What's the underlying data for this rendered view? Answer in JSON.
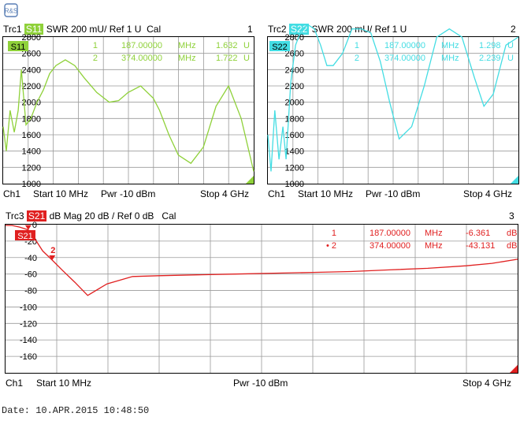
{
  "colors": {
    "trc1": "#8fd13a",
    "trc2": "#43dde3",
    "trc3": "#e02020"
  },
  "logo": {
    "icon": "rohde-schwarz-logo"
  },
  "panels": [
    {
      "id": "trc1",
      "header": {
        "trace": "Trc1",
        "param": "S11",
        "format": "SWR",
        "scale": "200 mU/",
        "ref": "Ref 1 U",
        "cal": "Cal",
        "num": "1"
      },
      "label": "S11",
      "footer": {
        "ch": "Ch1",
        "start": "Start  10 MHz",
        "pwr": "Pwr  -10 dBm",
        "stop": "Stop  4 GHz"
      },
      "markers": [
        {
          "num": "1",
          "freq": "187.00000",
          "unit": "MHz",
          "val": "1.632",
          "vunit": "U"
        },
        {
          "num": "2",
          "freq": "374.00000",
          "unit": "MHz",
          "val": "1.722",
          "vunit": "U"
        }
      ]
    },
    {
      "id": "trc2",
      "header": {
        "trace": "Trc2",
        "param": "S22",
        "format": "SWR",
        "scale": "200 mU/",
        "ref": "Ref 1 U",
        "cal": "",
        "num": "2"
      },
      "label": "S22",
      "footer": {
        "ch": "Ch1",
        "start": "Start  10 MHz",
        "pwr": "Pwr  -10 dBm",
        "stop": "Stop  4 GHz"
      },
      "markers": [
        {
          "num": "1",
          "freq": "187.00000",
          "unit": "MHz",
          "val": "1.298",
          "vunit": "U"
        },
        {
          "num": "2",
          "freq": "374.00000",
          "unit": "MHz",
          "val": "2.239",
          "vunit": "U"
        }
      ]
    },
    {
      "id": "trc3",
      "header": {
        "trace": "Trc3",
        "param": "S21",
        "format": "dB Mag",
        "scale": "20 dB /",
        "ref": "Ref 0 dB",
        "cal": "Cal",
        "num": "3"
      },
      "label": "S21",
      "footer": {
        "ch": "Ch1",
        "start": "Start  10 MHz",
        "pwr": "Pwr  -10 dBm",
        "stop": "Stop  4 GHz"
      },
      "markers": [
        {
          "num": "1",
          "freq": "187.00000",
          "unit": "MHz",
          "val": "-6.361",
          "vunit": "dB"
        },
        {
          "num": "• 2",
          "freq": "374.00000",
          "unit": "MHz",
          "val": "-43.131",
          "vunit": "dB"
        }
      ]
    }
  ],
  "date": "Date: 10.APR.2015  10:48:50",
  "chart_data": [
    {
      "type": "line",
      "series": [
        {
          "name": "S11",
          "x": [
            10,
            60,
            120,
            187,
            250,
            300,
            374,
            450,
            550,
            650,
            750,
            850,
            1000,
            1150,
            1300,
            1500,
            1700,
            1850,
            2000,
            2200,
            2400,
            2500,
            2650,
            2800,
            3000,
            3200,
            3400,
            3600,
            3800,
            4000
          ],
          "y": [
            1700,
            1400,
            1900,
            1632,
            1900,
            2400,
            1722,
            1800,
            2000,
            2150,
            2350,
            2450,
            2520,
            2450,
            2300,
            2120,
            2000,
            2020,
            2120,
            2200,
            2050,
            1900,
            1600,
            1350,
            1250,
            1450,
            1950,
            2200,
            1800,
            1150
          ]
        }
      ],
      "xlim": [
        10,
        4000
      ],
      "ylim": [
        1000,
        2800
      ],
      "yticks": [
        "1000",
        "1200",
        "1400",
        "1600",
        "1800",
        "2000",
        "2200",
        "2400",
        "2600",
        "2800"
      ]
    },
    {
      "type": "line",
      "series": [
        {
          "name": "S22",
          "x": [
            10,
            60,
            120,
            187,
            250,
            300,
            374,
            450,
            550,
            650,
            750,
            850,
            950,
            1050,
            1200,
            1350,
            1500,
            1650,
            1800,
            1950,
            2100,
            2300,
            2500,
            2700,
            2900,
            3100,
            3300,
            3450,
            3600,
            3800,
            4000
          ],
          "y": [
            1600,
            1150,
            1900,
            1298,
            1700,
            1300,
            2239,
            2700,
            2900,
            2950,
            2900,
            2700,
            2450,
            2450,
            2600,
            2900,
            2900,
            2850,
            2500,
            2000,
            1550,
            1700,
            2200,
            2800,
            2900,
            2800,
            2300,
            1950,
            2100,
            2700,
            2800
          ]
        }
      ],
      "xlim": [
        10,
        4000
      ],
      "ylim": [
        1000,
        2800
      ],
      "yticks": [
        "1000",
        "1200",
        "1400",
        "1600",
        "1800",
        "2000",
        "2200",
        "2400",
        "2600",
        "2800"
      ]
    },
    {
      "type": "line",
      "series": [
        {
          "name": "S21",
          "x": [
            10,
            60,
            120,
            187,
            250,
            300,
            374,
            450,
            550,
            650,
            800,
            1000,
            1200,
            1500,
            1800,
            2100,
            2400,
            2700,
            3000,
            3300,
            3600,
            3800,
            4000
          ],
          "y": [
            -1,
            -1,
            -3,
            -6.361,
            -20,
            -32,
            -43.131,
            -55,
            -70,
            -86,
            -72,
            -63,
            -62,
            -61,
            -60,
            -59,
            -58,
            -57,
            -55,
            -53,
            -50,
            -47,
            -42
          ]
        }
      ],
      "xlim": [
        10,
        4000
      ],
      "ylim": [
        -180,
        0
      ],
      "yticks": [
        "-160",
        "-140",
        "-120",
        "-100",
        "-80",
        "-60",
        "-40",
        "-20",
        "0"
      ]
    }
  ]
}
